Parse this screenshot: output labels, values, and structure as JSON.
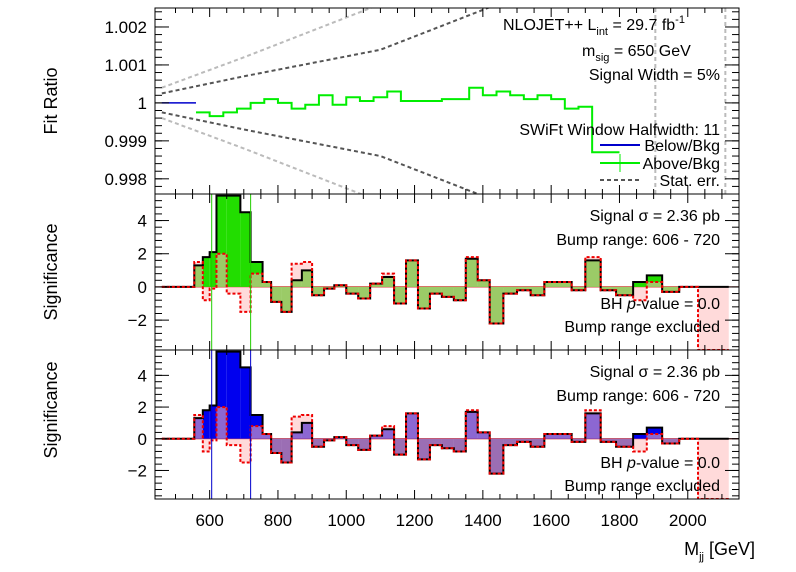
{
  "chart_data": [
    {
      "type": "line",
      "ylabel": "Fit Ratio",
      "ylim": [
        0.9976,
        1.0025
      ],
      "yticks": [
        "1.002",
        "1.001",
        "1",
        "0.999",
        "0.998"
      ],
      "ytick_values": [
        1.002,
        1.001,
        1.0,
        0.999,
        0.998
      ],
      "annotations": {
        "line1_main": "NLOJET++  L",
        "line1_sub": "int",
        "line1_end": " = 29.7 fb",
        "line1_sup": "-1",
        "line2_main": "m",
        "line2_sub": "sig",
        "line2_end": " = 650 GeV",
        "line3": "Signal Width = 5%",
        "line4": "SWiFt Window Halfwidth: 11"
      },
      "legend": [
        "Below/Bkg",
        "Above/Bkg",
        "Stat. err."
      ],
      "colors": {
        "below": "#0000cc",
        "above": "#00ee00",
        "stat1": "#555555",
        "stat2": "#bbbbbb"
      },
      "series": [
        {
          "name": "Above/Bkg",
          "x": [
            560,
            600,
            640,
            680,
            720,
            760,
            800,
            840,
            880,
            920,
            960,
            1000,
            1040,
            1080,
            1120,
            1160,
            1200,
            1240,
            1280,
            1320,
            1360,
            1400,
            1440,
            1480,
            1520,
            1560,
            1600,
            1640,
            1680,
            1720,
            1760
          ],
          "y": [
            0.99975,
            0.99965,
            0.99975,
            0.99985,
            1.0,
            1.0001,
            1.0,
            0.99985,
            0.99995,
            1.0002,
            0.99995,
            1.00015,
            1.00005,
            1.00015,
            1.0003,
            1.00005,
            1.00005,
            1.00005,
            1.0001,
            1.0001,
            1.0004,
            1.0002,
            1.0003,
            1.0002,
            1.0001,
            1.0002,
            1.0001,
            0.99985,
            0.9999,
            0.9987,
            0.9987
          ]
        }
      ],
      "stat_err": {
        "name": "Stat. err.",
        "x": [
          460,
          700,
          1100,
          1500,
          1900,
          2100
        ],
        "upper_inner": [
          1.00025,
          1.0007,
          1.0014,
          1.0028,
          1.005,
          1.006
        ],
        "upper_outer": [
          1.0004,
          1.0012,
          1.0026,
          1.005,
          1.008,
          1.01
        ]
      }
    },
    {
      "type": "bar",
      "ylabel": "Significance",
      "ylim": [
        -3.8,
        5.6
      ],
      "yticks": [
        "4",
        "2",
        "0",
        "−2"
      ],
      "ytick_values": [
        4,
        2,
        0,
        -2
      ],
      "annotations": [
        "Signal σ = 2.36 pb",
        "Bump range: 606 - 720",
        "BH",
        "p",
        "-value = 0.0",
        "Bump range excluded"
      ],
      "fill_color": "#22dd00",
      "bump_range": [
        606,
        720
      ],
      "bins": {
        "edges": [
          460,
          555,
          580,
          600,
          620,
          650,
          690,
          720,
          755,
          780,
          810,
          840,
          870,
          900,
          935,
          965,
          1000,
          1035,
          1070,
          1105,
          1140,
          1175,
          1210,
          1245,
          1280,
          1315,
          1350,
          1385,
          1420,
          1460,
          1500,
          1540,
          1580,
          1620,
          1660,
          1700,
          1745,
          1790,
          1840,
          1880,
          1925,
          1975,
          2030,
          2120
        ],
        "values": [
          0,
          1.3,
          1.8,
          2.1,
          5.5,
          5.5,
          4.5,
          1.5,
          0.3,
          -0.9,
          -1.5,
          0.4,
          1.0,
          -0.5,
          -0.1,
          0.1,
          -0.4,
          -0.7,
          0.2,
          0.6,
          -1.0,
          1.6,
          -1.3,
          -0.4,
          -0.6,
          -0.8,
          1.7,
          0.4,
          -2.2,
          -0.4,
          -0.2,
          -0.5,
          0.3,
          0.3,
          -0.2,
          1.6,
          -0.2,
          -0.5,
          0.3,
          0.7,
          -0.3,
          0.0,
          0.0
        ],
        "excluded": [
          0,
          1.5,
          -0.8,
          -0.1,
          2.0,
          -0.4,
          -1.5,
          0.8,
          0.3,
          -0.9,
          -1.5,
          1.4,
          1.5,
          -0.5,
          -0.1,
          0.1,
          -0.4,
          -0.7,
          0.2,
          0.8,
          -1.0,
          1.6,
          -1.3,
          -0.4,
          -0.6,
          -0.8,
          1.8,
          0.4,
          -2.2,
          -0.4,
          -0.2,
          -0.5,
          0.3,
          0.3,
          -0.2,
          1.8,
          -0.2,
          -0.5,
          -0.8,
          0.3,
          -0.3,
          0.0,
          -3.8
        ]
      }
    },
    {
      "type": "bar",
      "ylabel": "Significance",
      "xlabel_main": "M",
      "xlabel_sub": "jj",
      "xlabel_end": " [GeV]",
      "xlim": [
        440,
        2150
      ],
      "xticks": [
        "600",
        "800",
        "1000",
        "1200",
        "1400",
        "1600",
        "1800",
        "2000"
      ],
      "xtick_values": [
        600,
        800,
        1000,
        1200,
        1400,
        1600,
        1800,
        2000
      ],
      "ylim": [
        -3.8,
        5.6
      ],
      "yticks": [
        "4",
        "2",
        "0",
        "−2"
      ],
      "ytick_values": [
        4,
        2,
        0,
        -2
      ],
      "annotations": [
        "Signal σ = 2.36 pb",
        "Bump range: 606 - 720",
        "BH",
        "p",
        "-value = 0.0",
        "Bump range excluded"
      ],
      "fill_color": "#0000ee",
      "fill_color_negative": "#2211aa",
      "bump_range": [
        606,
        720
      ],
      "bins": {
        "edges": [
          460,
          555,
          580,
          600,
          620,
          650,
          690,
          720,
          755,
          780,
          810,
          840,
          870,
          900,
          935,
          965,
          1000,
          1035,
          1070,
          1105,
          1140,
          1175,
          1210,
          1245,
          1280,
          1315,
          1350,
          1385,
          1420,
          1460,
          1500,
          1540,
          1580,
          1620,
          1660,
          1700,
          1745,
          1790,
          1840,
          1880,
          1925,
          1975,
          2030,
          2120
        ],
        "values": [
          0,
          1.3,
          1.8,
          2.1,
          5.5,
          5.5,
          4.5,
          1.5,
          0.3,
          -0.9,
          -1.5,
          0.4,
          1.0,
          -0.5,
          -0.1,
          0.1,
          -0.4,
          -0.7,
          0.2,
          0.6,
          -1.0,
          1.6,
          -1.3,
          -0.4,
          -0.6,
          -0.8,
          1.7,
          0.4,
          -2.2,
          -0.4,
          -0.2,
          -0.5,
          0.3,
          0.3,
          -0.2,
          1.6,
          -0.2,
          -0.5,
          0.3,
          0.7,
          -0.3,
          0.0,
          0.0
        ],
        "excluded": [
          0,
          1.5,
          -0.8,
          -0.1,
          2.0,
          -0.4,
          -1.5,
          0.8,
          0.3,
          -0.9,
          -1.5,
          1.4,
          1.5,
          -0.5,
          -0.1,
          0.1,
          -0.4,
          -0.7,
          0.2,
          0.8,
          -1.0,
          1.6,
          -1.3,
          -0.4,
          -0.6,
          -0.8,
          1.8,
          0.4,
          -2.2,
          -0.4,
          -0.2,
          -0.5,
          0.3,
          0.3,
          -0.2,
          1.8,
          -0.2,
          -0.5,
          -0.8,
          0.3,
          -0.3,
          0.0,
          -3.8
        ]
      }
    }
  ]
}
